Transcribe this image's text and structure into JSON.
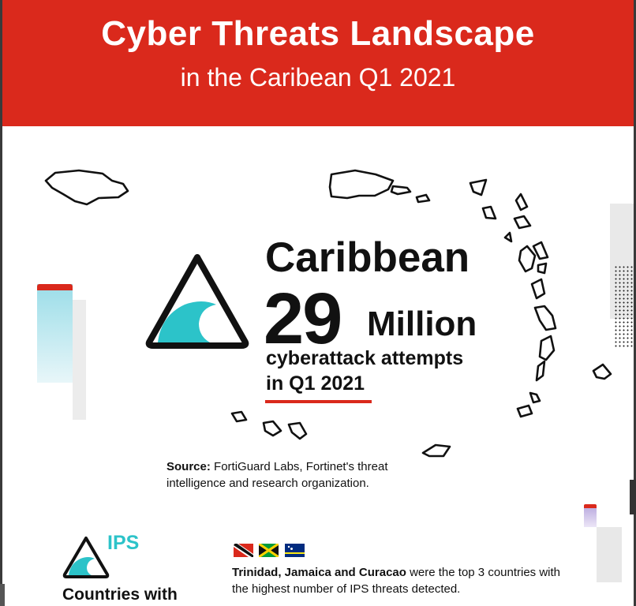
{
  "header": {
    "title": "Cyber Threats  Landscape",
    "subtitle": "in the Caribean Q1 2021"
  },
  "hero": {
    "region": "Caribbean",
    "number": "29",
    "unit": "Million",
    "description_line1": "cyberattack attempts",
    "description_line2": "in Q1 2021",
    "icon": "wave-warning-triangle-icon"
  },
  "source": {
    "label": "Source:",
    "text": "FortiGuard Labs, Fortinet's threat intelligence and research organization."
  },
  "ips": {
    "label": "IPS",
    "heading": "Countries with",
    "icon": "wave-warning-triangle-icon",
    "flags": [
      "trinidad-and-tobago-flag",
      "jamaica-flag",
      "curacao-flag"
    ],
    "countries": "Trinidad, Jamaica and Curacao",
    "statement": " were the top 3 countries with the highest number of IPS threats detected."
  },
  "colors": {
    "brand_red": "#da291c",
    "accent_teal": "#2cc3c9",
    "text": "#111111"
  }
}
